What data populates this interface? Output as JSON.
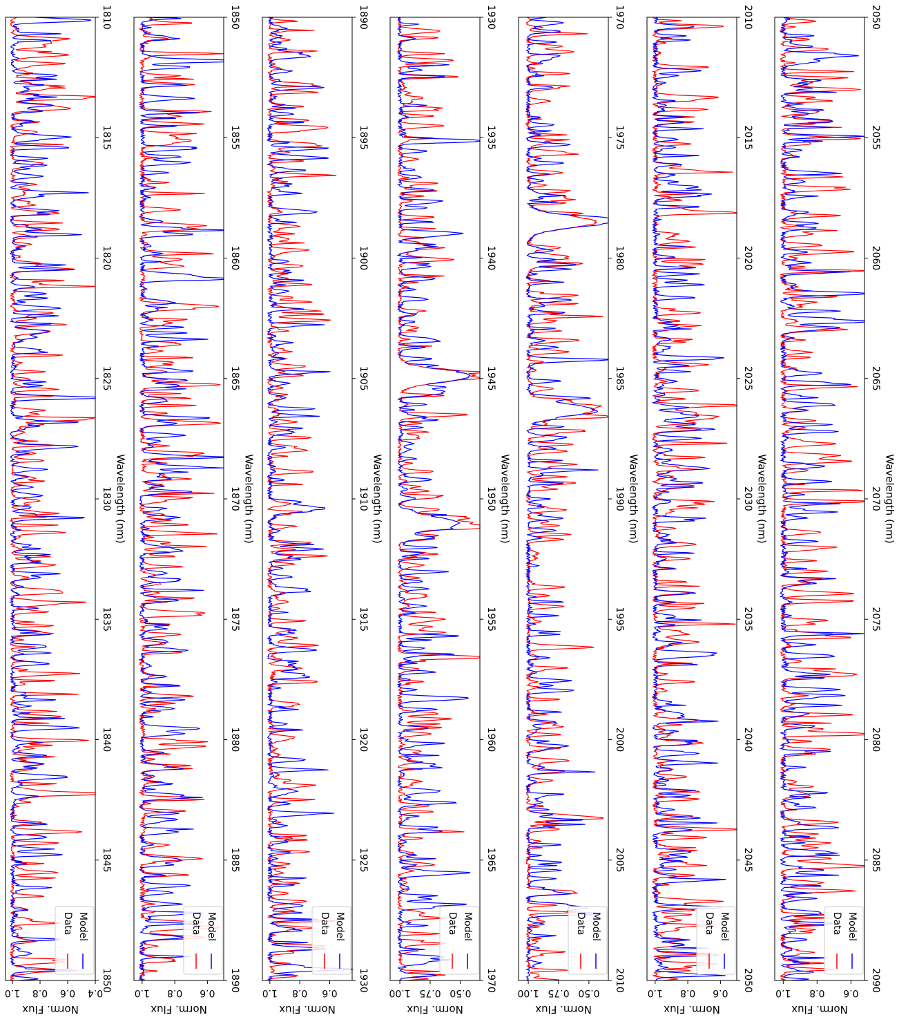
{
  "figure": {
    "description_free": true
  },
  "chart_data": [
    {
      "type": "line",
      "xlabel": "Wavelength (nm)",
      "ylabel": "Norm. Flux",
      "xlim": [
        1810,
        1850
      ],
      "ylim": [
        0.4,
        1.05
      ],
      "xticks": [
        "1810",
        "1815",
        "1820",
        "1825",
        "1830",
        "1835",
        "1840",
        "1845",
        "1850"
      ],
      "yticks": [
        "0.4",
        "0.6",
        "0.8",
        "1.0"
      ],
      "legend": [
        "Data",
        "Model"
      ],
      "legend_placement": "lower-left",
      "series": [
        {
          "name": "Data",
          "color": "#ff0000",
          "seed": 11,
          "depth": 0.38,
          "deep": []
        },
        {
          "name": "Model",
          "color": "#0000ff",
          "seed": 12,
          "depth": 0.34,
          "deep": []
        }
      ]
    },
    {
      "type": "line",
      "xlabel": "Wavelength (nm)",
      "ylabel": "Norm. Flux",
      "xlim": [
        1850,
        1890
      ],
      "ylim": [
        0.5,
        1.05
      ],
      "xticks": [
        "1850",
        "1855",
        "1860",
        "1865",
        "1870",
        "1875",
        "1880",
        "1885",
        "1890"
      ],
      "yticks": [
        "0.6",
        "0.8",
        "1.0"
      ],
      "legend": [
        "Data",
        "Model"
      ],
      "legend_placement": "lower-left",
      "series": [
        {
          "name": "Data",
          "color": "#ff0000",
          "seed": 21,
          "depth": 0.36,
          "deep": []
        },
        {
          "name": "Model",
          "color": "#0000ff",
          "seed": 22,
          "depth": 0.32,
          "deep": []
        }
      ]
    },
    {
      "type": "line",
      "xlabel": "Wavelength (nm)",
      "ylabel": "Norm. Flux",
      "xlim": [
        1890,
        1930
      ],
      "ylim": [
        0.45,
        1.05
      ],
      "xticks": [
        "1890",
        "1895",
        "1900",
        "1905",
        "1910",
        "1915",
        "1920",
        "1925",
        "1930"
      ],
      "yticks": [
        "0.6",
        "0.8",
        "1.0"
      ],
      "legend": [
        "Data",
        "Model"
      ],
      "legend_placement": "lower-left",
      "series": [
        {
          "name": "Data",
          "color": "#ff0000",
          "seed": 31,
          "depth": 0.3,
          "deep": []
        },
        {
          "name": "Model",
          "color": "#0000ff",
          "seed": 32,
          "depth": 0.27,
          "deep": []
        }
      ]
    },
    {
      "type": "line",
      "xlabel": "Wavelength (nm)",
      "ylabel": "Norm. Flux",
      "xlim": [
        1930,
        1970
      ],
      "ylim": [
        0.34,
        1.08
      ],
      "xticks": [
        "1930",
        "1935",
        "1940",
        "1945",
        "1950",
        "1955",
        "1960",
        "1965",
        "1970"
      ],
      "yticks": [
        "0.50",
        "0.75",
        "1.00"
      ],
      "legend": [
        "Data",
        "Model"
      ],
      "legend_placement": "lower-left",
      "series": [
        {
          "name": "Data",
          "color": "#ff0000",
          "seed": 41,
          "depth": 0.36,
          "deep": [
            {
              "x": 1944.9,
              "y": 0.41
            },
            {
              "x": 1951.0,
              "y": 0.51
            }
          ]
        },
        {
          "name": "Model",
          "color": "#0000ff",
          "seed": 42,
          "depth": 0.33,
          "deep": [
            {
              "x": 1944.9,
              "y": 0.42
            },
            {
              "x": 1951.0,
              "y": 0.52
            }
          ]
        }
      ]
    },
    {
      "type": "line",
      "xlabel": "Wavelength (nm)",
      "ylabel": "Norm. Flux",
      "xlim": [
        1970,
        2010
      ],
      "ylim": [
        0.34,
        1.08
      ],
      "xticks": [
        "1970",
        "1975",
        "1980",
        "1985",
        "1990",
        "1995",
        "2000",
        "2005",
        "2010"
      ],
      "yticks": [
        "0.50",
        "0.75",
        "1.00"
      ],
      "legend": [
        "Data",
        "Model"
      ],
      "legend_placement": "lower-left",
      "series": [
        {
          "name": "Data",
          "color": "#ff0000",
          "seed": 51,
          "depth": 0.36,
          "deep": [
            {
              "x": 1978.5,
              "y": 0.44
            },
            {
              "x": 1986.3,
              "y": 0.46
            }
          ]
        },
        {
          "name": "Model",
          "color": "#0000ff",
          "seed": 52,
          "depth": 0.33,
          "deep": [
            {
              "x": 1978.5,
              "y": 0.45
            },
            {
              "x": 1986.3,
              "y": 0.47
            }
          ]
        }
      ]
    },
    {
      "type": "line",
      "xlabel": "Wavelength (nm)",
      "ylabel": "Norm. Flux",
      "xlim": [
        2010,
        2050
      ],
      "ylim": [
        0.5,
        1.05
      ],
      "xticks": [
        "2010",
        "2015",
        "2020",
        "2025",
        "2030",
        "2035",
        "2040",
        "2045",
        "2050"
      ],
      "yticks": [
        "0.6",
        "0.8",
        "1.0"
      ],
      "legend": [
        "Data",
        "Model"
      ],
      "legend_placement": "lower-left",
      "series": [
        {
          "name": "Data",
          "color": "#ff0000",
          "seed": 61,
          "depth": 0.34,
          "deep": []
        },
        {
          "name": "Model",
          "color": "#0000ff",
          "seed": 62,
          "depth": 0.3,
          "deep": []
        }
      ]
    },
    {
      "type": "line",
      "xlabel": "Wavelength (nm)",
      "ylabel": "Norm. Flux",
      "xlim": [
        2050,
        2090
      ],
      "ylim": [
        0.52,
        1.05
      ],
      "xticks": [
        "2050",
        "2055",
        "2060",
        "2065",
        "2070",
        "2075",
        "2080",
        "2085",
        "2090"
      ],
      "yticks": [
        "0.6",
        "0.8",
        "1.0"
      ],
      "legend": [
        "Data",
        "Model"
      ],
      "legend_placement": "lower-left",
      "series": [
        {
          "name": "Data",
          "color": "#ff0000",
          "seed": 71,
          "depth": 0.34,
          "deep": []
        },
        {
          "name": "Model",
          "color": "#0000ff",
          "seed": 72,
          "depth": 0.3,
          "deep": []
        }
      ]
    }
  ]
}
